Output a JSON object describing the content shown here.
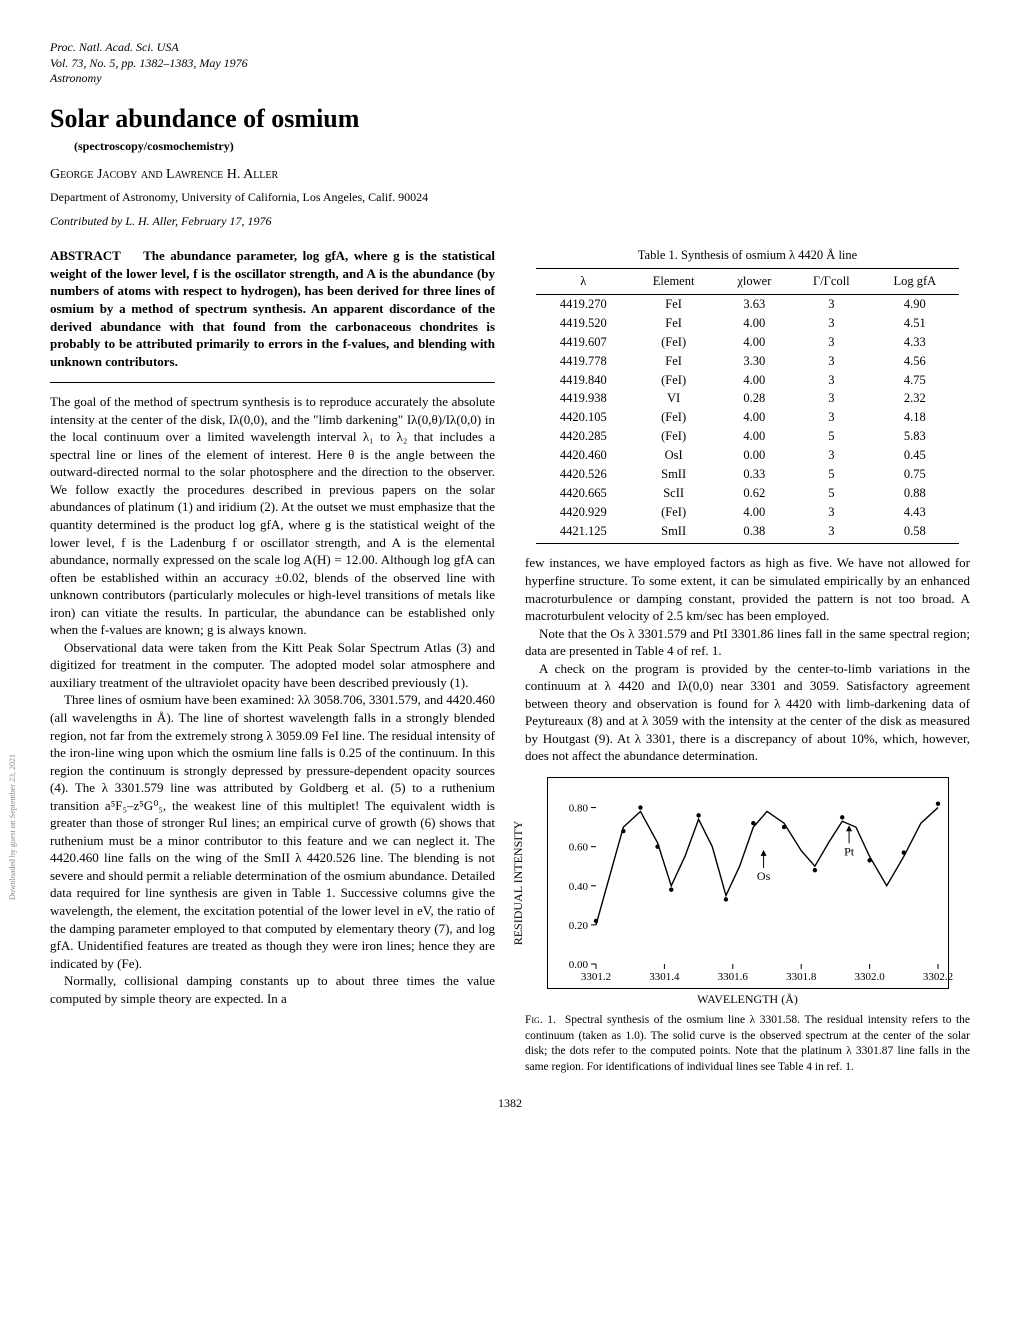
{
  "journal": {
    "l1": "Proc. Natl. Acad. Sci. USA",
    "l2": "Vol. 73, No. 5, pp. 1382–1383, May 1976",
    "l3": "Astronomy"
  },
  "title": "Solar abundance of osmium",
  "subtitle": "(spectroscopy/cosmochemistry)",
  "authors": "George Jacoby and Lawrence H. Aller",
  "dept": "Department of Astronomy, University of California, Los Angeles, Calif. 90024",
  "contrib": "Contributed by L. H. Aller, February 17, 1976",
  "abstract_label": "ABSTRACT",
  "abstract_body": "The abundance parameter, log gfA, where g is the statistical weight of the lower level, f is the oscillator strength, and A is the abundance (by numbers of atoms with respect to hydrogen), has been derived for three lines of osmium by a method of spectrum synthesis. An apparent discordance of the derived abundance with that found from the carbonaceous chondrites is probably to be attributed primarily to errors in the f-values, and blending with unknown contributors.",
  "left": {
    "p1": "The goal of the method of spectrum synthesis is to reproduce accurately the absolute intensity at the center of the disk, Iλ(0,0), and the \"limb darkening\" Iλ(0,θ)/Iλ(0,0) in the local continuum over a limited wavelength interval λ₁ to λ₂ that includes a spectral line or lines of the element of interest. Here θ is the angle between the outward-directed normal to the solar photosphere and the direction to the observer. We follow exactly the procedures described in previous papers on the solar abundances of platinum (1) and iridium (2). At the outset we must emphasize that the quantity determined is the product log gfA, where g is the statistical weight of the lower level, f is the Ladenburg f or oscillator strength, and A is the elemental abundance, normally expressed on the scale log A(H) = 12.00. Although log gfA can often be established within an accuracy ±0.02, blends of the observed line with unknown contributors (particularly molecules or high-level transitions of metals like iron) can vitiate the results. In particular, the abundance can be established only when the f-values are known; g is always known.",
    "p2": "Observational data were taken from the Kitt Peak Solar Spectrum Atlas (3) and digitized for treatment in the computer. The adopted model solar atmosphere and auxiliary treatment of the ultraviolet opacity have been described previously (1).",
    "p3": "Three lines of osmium have been examined: λλ 3058.706, 3301.579, and 4420.460 (all wavelengths in Å). The line of shortest wavelength falls in a strongly blended region, not far from the extremely strong λ 3059.09 FeI line. The residual intensity of the iron-line wing upon which the osmium line falls is 0.25 of the continuum. In this region the continuum is strongly depressed by pressure-dependent opacity sources (4). The λ 3301.579 line was attributed by Goldberg et al. (5) to a ruthenium transition a⁵F₅–z⁵G⁰₅, the weakest line of this multiplet! The equivalent width is greater than those of stronger RuI lines; an empirical curve of growth (6) shows that ruthenium must be a minor contributor to this feature and we can neglect it. The 4420.460 line falls on the wing of the SmII λ 4420.526 line. The blending is not severe and should permit a reliable determination of the osmium abundance. Detailed data required for line synthesis are given in Table 1. Successive columns give the wavelength, the element, the excitation potential of the lower level in eV, the ratio of the damping parameter employed to that computed by elementary theory (7), and log gfA. Unidentified features are treated as though they were iron lines; hence they are indicated by (Fe).",
    "p4": "Normally, collisional damping constants up to about three times the value computed by simple theory are expected. In a"
  },
  "table": {
    "title": "Table 1.  Synthesis of osmium λ 4420 Å line",
    "headers": {
      "c1": "λ",
      "c2": "Element",
      "c3": "χlower",
      "c4": "Γ/Γcoll",
      "c5": "Log gfA"
    },
    "rows": [
      [
        "4419.270",
        "FeI",
        "3.63",
        "3",
        "4.90"
      ],
      [
        "4419.520",
        "FeI",
        "4.00",
        "3",
        "4.51"
      ],
      [
        "4419.607",
        "(FeI)",
        "4.00",
        "3",
        "4.33"
      ],
      [
        "4419.778",
        "FeI",
        "3.30",
        "3",
        "4.56"
      ],
      [
        "4419.840",
        "(FeI)",
        "4.00",
        "3",
        "4.75"
      ],
      [
        "4419.938",
        "VI",
        "0.28",
        "3",
        "2.32"
      ],
      [
        "4420.105",
        "(FeI)",
        "4.00",
        "3",
        "4.18"
      ],
      [
        "4420.285",
        "(FeI)",
        "4.00",
        "5",
        "5.83"
      ],
      [
        "4420.460",
        "OsI",
        "0.00",
        "3",
        "0.45"
      ],
      [
        "4420.526",
        "SmII",
        "0.33",
        "5",
        "0.75"
      ],
      [
        "4420.665",
        "ScII",
        "0.62",
        "5",
        "0.88"
      ],
      [
        "4420.929",
        "(FeI)",
        "4.00",
        "3",
        "4.43"
      ],
      [
        "4421.125",
        "SmII",
        "0.38",
        "3",
        "0.58"
      ]
    ]
  },
  "right": {
    "p1": "few instances, we have employed factors as high as five. We have not allowed for hyperfine structure. To some extent, it can be simulated empirically by an enhanced macroturbulence or damping constant, provided the pattern is not too broad. A macroturbulent velocity of 2.5 km/sec has been employed.",
    "p2": "Note that the Os λ 3301.579 and PtI 3301.86 lines fall in the same spectral region; data are presented in Table 4 of ref. 1.",
    "p3": "A check on the program is provided by the center-to-limb variations in the continuum at λ 4420 and Iλ(0,0) near 3301 and 3059. Satisfactory agreement between theory and observation is found for λ 4420 with limb-darkening data of Peytureaux (8) and at λ 3059 with the intensity at the center of the disk as measured by Houtgast (9). At λ 3301, there is a discrepancy of about 10%, which, however, does not affect the abundance determination."
  },
  "chart": {
    "type": "line",
    "xlim": [
      3301.2,
      3302.2
    ],
    "xticks": [
      "3301.2",
      "3301.4",
      "3301.6",
      "3301.8",
      "3302.0",
      "3302.2"
    ],
    "ylim": [
      0.0,
      0.9
    ],
    "yticks": [
      "0.00",
      "0.20",
      "0.40",
      "0.60",
      "0.80"
    ],
    "ylabel": "RESIDUAL INTENSITY",
    "xlabel": "WAVELENGTH (Å)",
    "annot_os": "Os",
    "annot_pt": "Pt",
    "annot_os_pos": [
      0.49,
      0.42
    ],
    "annot_pt_pos": [
      0.74,
      0.28
    ],
    "curve_color": "#000000",
    "dot_color": "#000000",
    "line_width": 1.4,
    "dot_radius": 2.2,
    "curve": [
      [
        3301.2,
        0.2
      ],
      [
        3301.24,
        0.45
      ],
      [
        3301.28,
        0.7
      ],
      [
        3301.33,
        0.78
      ],
      [
        3301.38,
        0.62
      ],
      [
        3301.42,
        0.4
      ],
      [
        3301.46,
        0.55
      ],
      [
        3301.5,
        0.74
      ],
      [
        3301.54,
        0.6
      ],
      [
        3301.58,
        0.35
      ],
      [
        3301.62,
        0.5
      ],
      [
        3301.66,
        0.7
      ],
      [
        3301.7,
        0.78
      ],
      [
        3301.75,
        0.72
      ],
      [
        3301.8,
        0.58
      ],
      [
        3301.84,
        0.5
      ],
      [
        3301.88,
        0.62
      ],
      [
        3301.92,
        0.73
      ],
      [
        3301.96,
        0.7
      ],
      [
        3302.0,
        0.55
      ],
      [
        3302.05,
        0.4
      ],
      [
        3302.1,
        0.55
      ],
      [
        3302.15,
        0.72
      ],
      [
        3302.2,
        0.8
      ]
    ],
    "dots": [
      [
        3301.2,
        0.22
      ],
      [
        3301.28,
        0.68
      ],
      [
        3301.33,
        0.8
      ],
      [
        3301.38,
        0.6
      ],
      [
        3301.42,
        0.38
      ],
      [
        3301.5,
        0.76
      ],
      [
        3301.58,
        0.33
      ],
      [
        3301.66,
        0.72
      ],
      [
        3301.75,
        0.7
      ],
      [
        3301.84,
        0.48
      ],
      [
        3301.92,
        0.75
      ],
      [
        3302.0,
        0.53
      ],
      [
        3302.1,
        0.57
      ],
      [
        3302.2,
        0.82
      ]
    ]
  },
  "fig_caption_label": "Fig. 1.",
  "fig_caption": "Spectral synthesis of the osmium line λ 3301.58. The residual intensity refers to the continuum (taken as 1.0). The solid curve is the observed spectrum at the center of the solar disk; the dots refer to the computed points. Note that the platinum λ 3301.87 line falls in the same region. For identifications of individual lines see Table 4 in ref. 1.",
  "page_number": "1382",
  "sidenote": "Downloaded by guest on September 23, 2021"
}
